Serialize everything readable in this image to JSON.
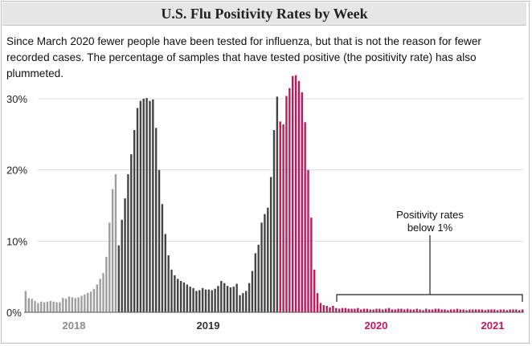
{
  "header": {
    "title": "U.S. Flu Positivity Rates by Week",
    "subtitle": "Since March 2020 fewer people have been tested for influenza, but that is not the reason for fewer recorded cases. The percentage of samples that have tested positive (the positivity rate) has also plummeted."
  },
  "chart_data": {
    "type": "bar",
    "title": "U.S. Flu Positivity Rates by Week",
    "xlabel": "",
    "ylabel": "",
    "ylim": [
      0,
      34
    ],
    "yticks": [
      0,
      10,
      20,
      30
    ],
    "ytick_labels": [
      "0%",
      "10%",
      "20%",
      "30%"
    ],
    "grid": true,
    "year_labels": [
      {
        "label": "2018",
        "color": "#8c8c8c",
        "start_index": 0
      },
      {
        "label": "2019",
        "color": "#333333",
        "start_index": 35
      },
      {
        "label": "2020",
        "color": "#c2185b",
        "start_index": 110
      },
      {
        "label": "2021",
        "color": "#c2185b",
        "start_index": 160
      }
    ],
    "annotation": {
      "text_line1": "Positivity rates",
      "text_line2": "below 1%",
      "from_index": 127,
      "to_index": 205
    },
    "series": [
      {
        "color": "#9e9e9e",
        "values": [
          3.0,
          2.0,
          1.9,
          1.6,
          1.3,
          1.5,
          1.4,
          1.5,
          1.6,
          1.5,
          1.4,
          1.4,
          2.0,
          1.9,
          2.2,
          2.1,
          2.0,
          2.1,
          2.3,
          2.5,
          2.7,
          2.9,
          3.3,
          3.9,
          4.7,
          5.5,
          7.8,
          12.6,
          17.3,
          19.4
        ]
      },
      {
        "color": "#444444",
        "values": [
          9.4,
          13.0,
          16.0,
          19.4,
          22.2,
          25.6,
          28.7,
          29.7,
          30.0,
          30.1,
          29.7,
          29.9,
          25.9,
          20.0,
          15.2,
          11.0,
          8.0,
          6.0,
          5.2,
          4.7,
          4.4,
          4.2,
          3.9,
          3.6,
          3.4,
          3.0,
          3.1,
          3.4,
          3.2,
          3.2,
          3.1,
          3.3,
          3.7,
          4.4,
          4.1,
          3.7,
          3.5,
          3.6,
          4.0,
          2.4,
          2.7,
          3.0,
          4.1,
          5.8,
          8.3,
          9.5,
          12.6,
          13.8,
          14.7,
          19.0,
          25.6,
          30.3
        ]
      },
      {
        "color": "#c2185b",
        "values": [
          26.8,
          26.4,
          30.4,
          31.5,
          33.2,
          33.3,
          32.5,
          30.9,
          26.7,
          20.0,
          13.3,
          6.0,
          2.7,
          1.3,
          1.0,
          0.9,
          0.7,
          0.9,
          0.6,
          0.5,
          0.6,
          0.6,
          0.5,
          0.5,
          0.5,
          0.6,
          0.4,
          0.5,
          0.5,
          0.4,
          0.4,
          0.5,
          0.5,
          0.4,
          0.5,
          0.6,
          0.4,
          0.4,
          0.5,
          0.5,
          0.4,
          0.5,
          0.4,
          0.4,
          0.5,
          0.4,
          0.3,
          0.5,
          0.4,
          0.4,
          0.5,
          0.5,
          0.4,
          0.4,
          0.3,
          0.4,
          0.4,
          0.5,
          0.4,
          0.4,
          0.3,
          0.4,
          0.4,
          0.4,
          0.4,
          0.4,
          0.3,
          0.4,
          0.4,
          0.4,
          0.3,
          0.4,
          0.4,
          0.3,
          0.4,
          0.4,
          0.4,
          0.3,
          0.4
        ]
      }
    ]
  }
}
